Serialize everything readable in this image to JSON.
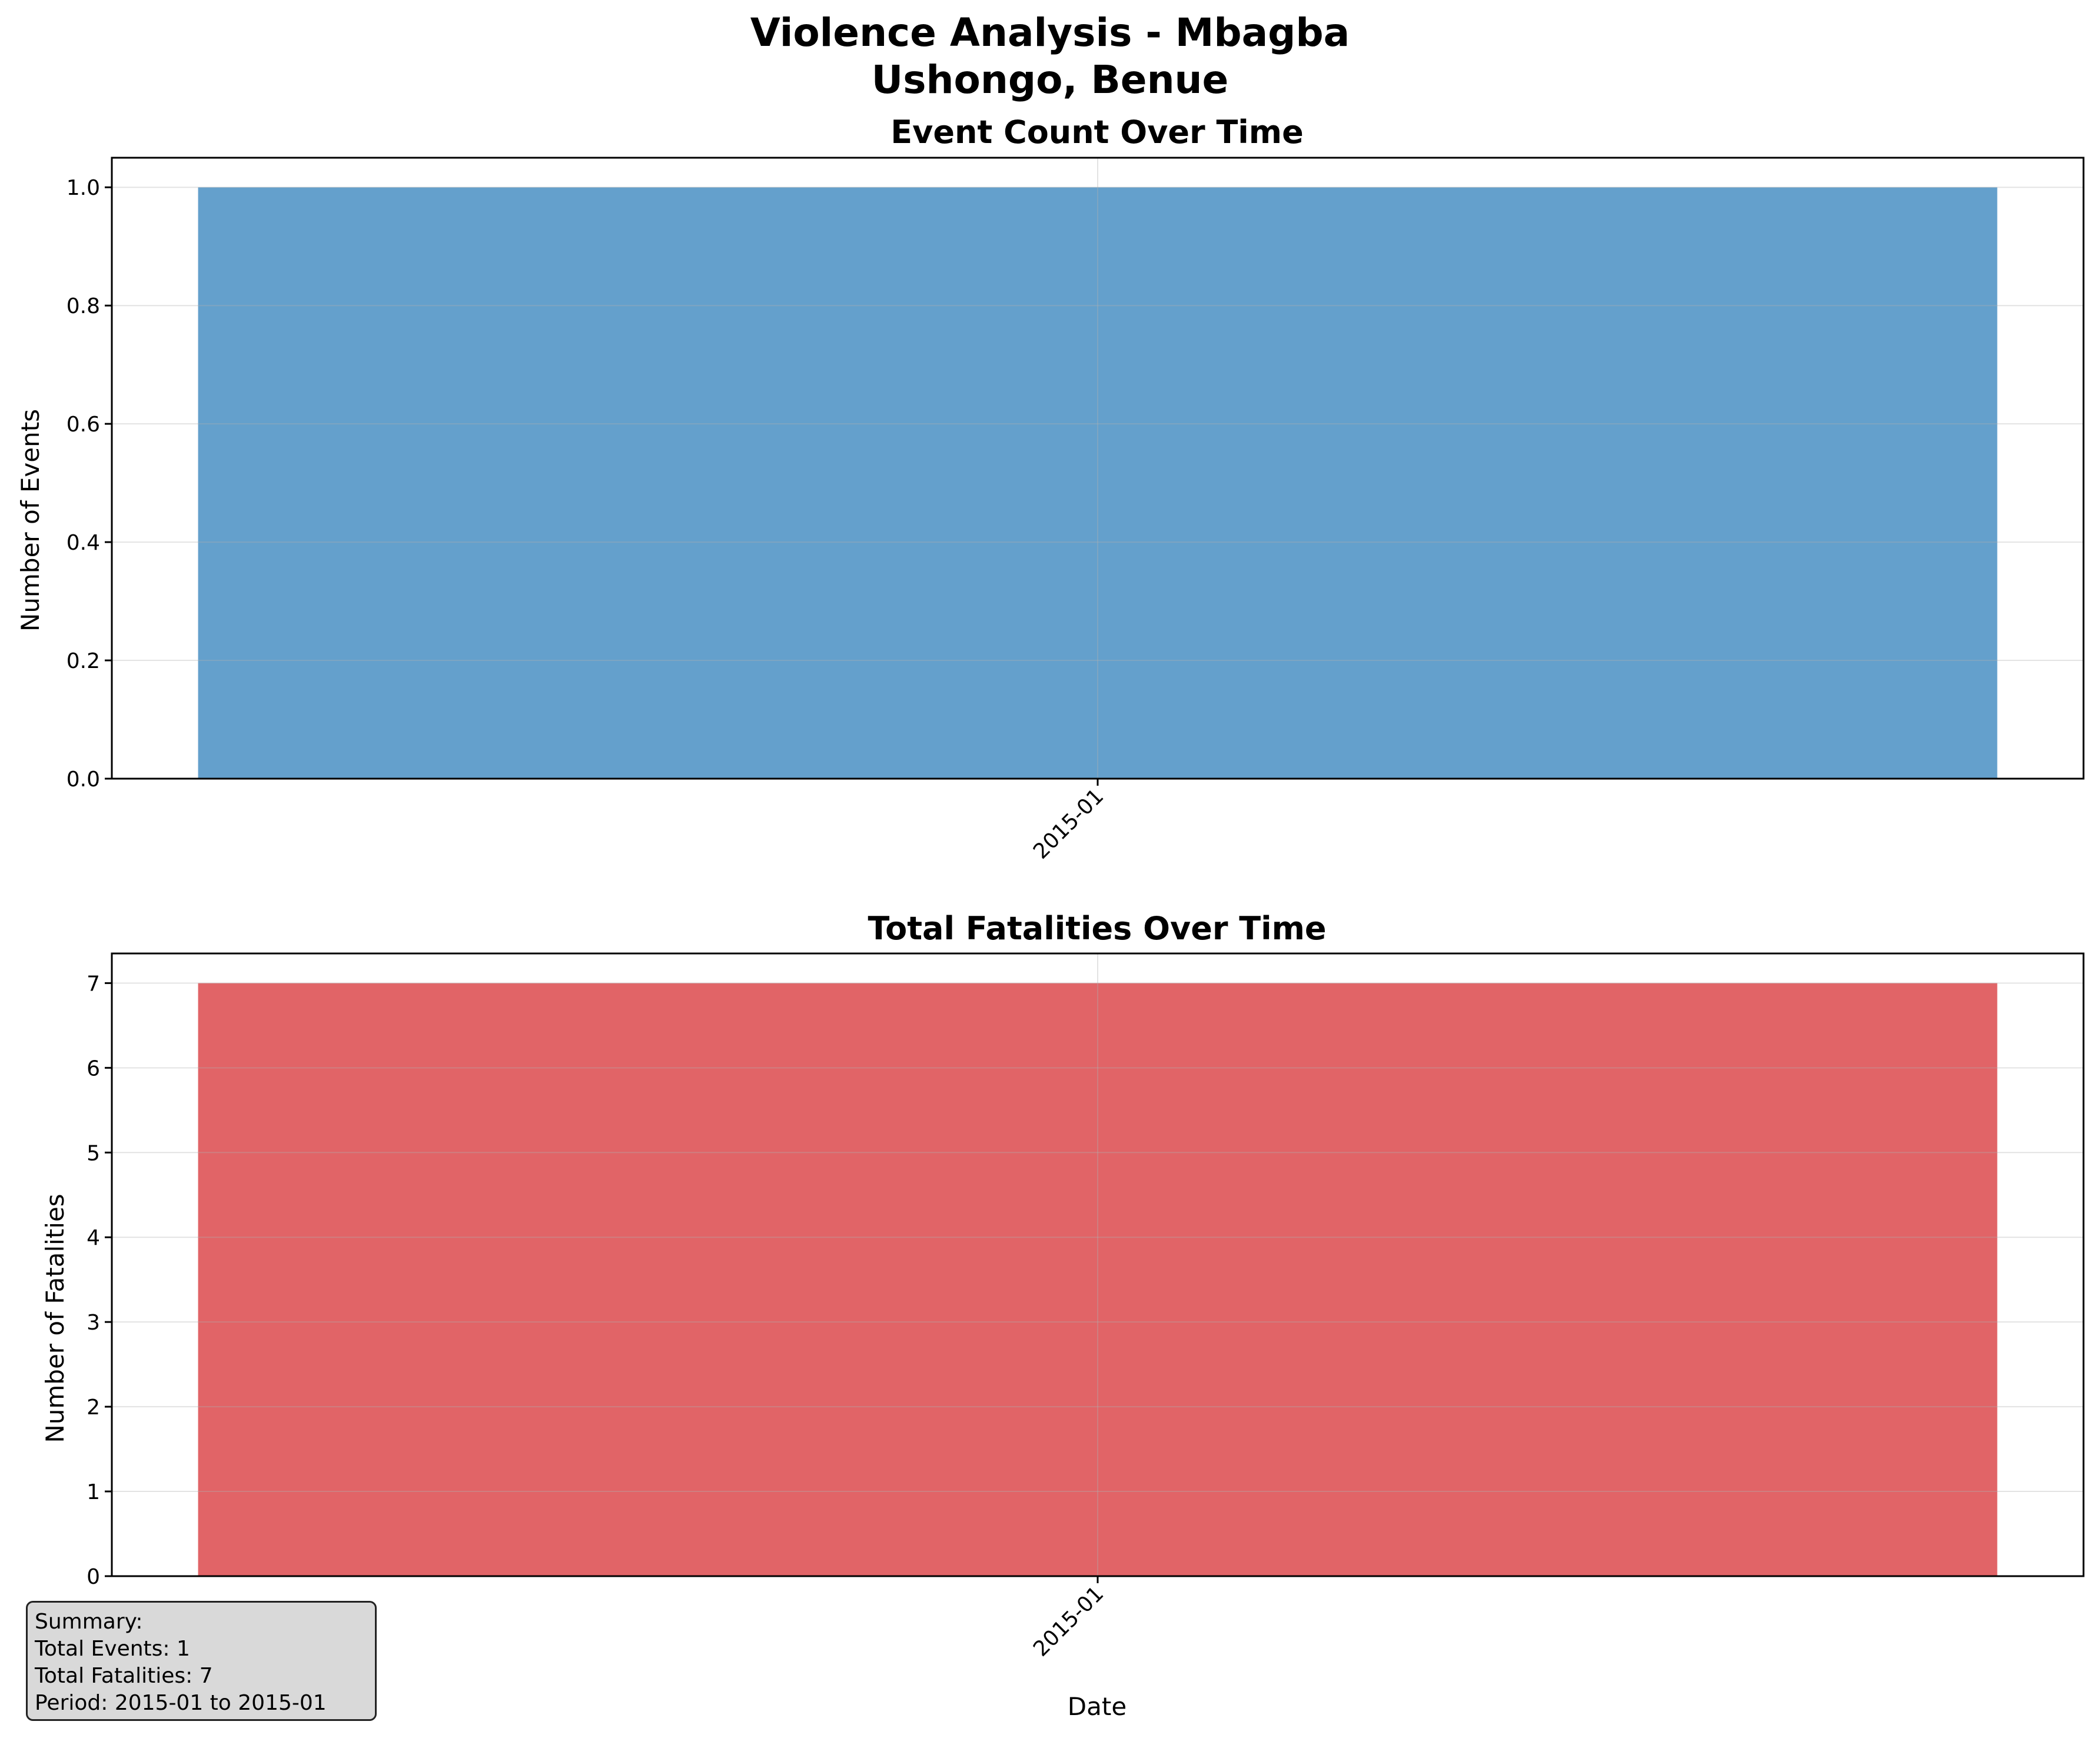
{
  "figure": {
    "title_line1": "Violence Analysis - Mbagba",
    "title_line2": "Ushongo, Benue"
  },
  "chart_data": [
    {
      "type": "bar",
      "title": "Event Count Over Time",
      "xlabel": "",
      "ylabel": "Number of Events",
      "categories": [
        "2015-01"
      ],
      "values": [
        1
      ],
      "ylim": [
        0,
        1.05
      ],
      "yticks": [
        "0.0",
        "0.2",
        "0.4",
        "0.6",
        "0.8",
        "1.0"
      ],
      "ytick_values": [
        0,
        0.2,
        0.4,
        0.6,
        0.8,
        1.0
      ],
      "color": "#4a90c4",
      "grid": true
    },
    {
      "type": "bar",
      "title": "Total Fatalities Over Time",
      "xlabel": "Date",
      "ylabel": "Number of Fatalities",
      "categories": [
        "2015-01"
      ],
      "values": [
        7
      ],
      "ylim": [
        0,
        7.35
      ],
      "yticks": [
        "0",
        "1",
        "2",
        "3",
        "4",
        "5",
        "6",
        "7"
      ],
      "ytick_values": [
        0,
        1,
        2,
        3,
        4,
        5,
        6,
        7
      ],
      "color": "#dc4b4e",
      "grid": true
    }
  ],
  "summary": {
    "heading": "Summary:",
    "total_events": "Total Events: 1",
    "total_fatalities": "Total Fatalities: 7",
    "period": "Period: 2015-01 to 2015-01"
  }
}
